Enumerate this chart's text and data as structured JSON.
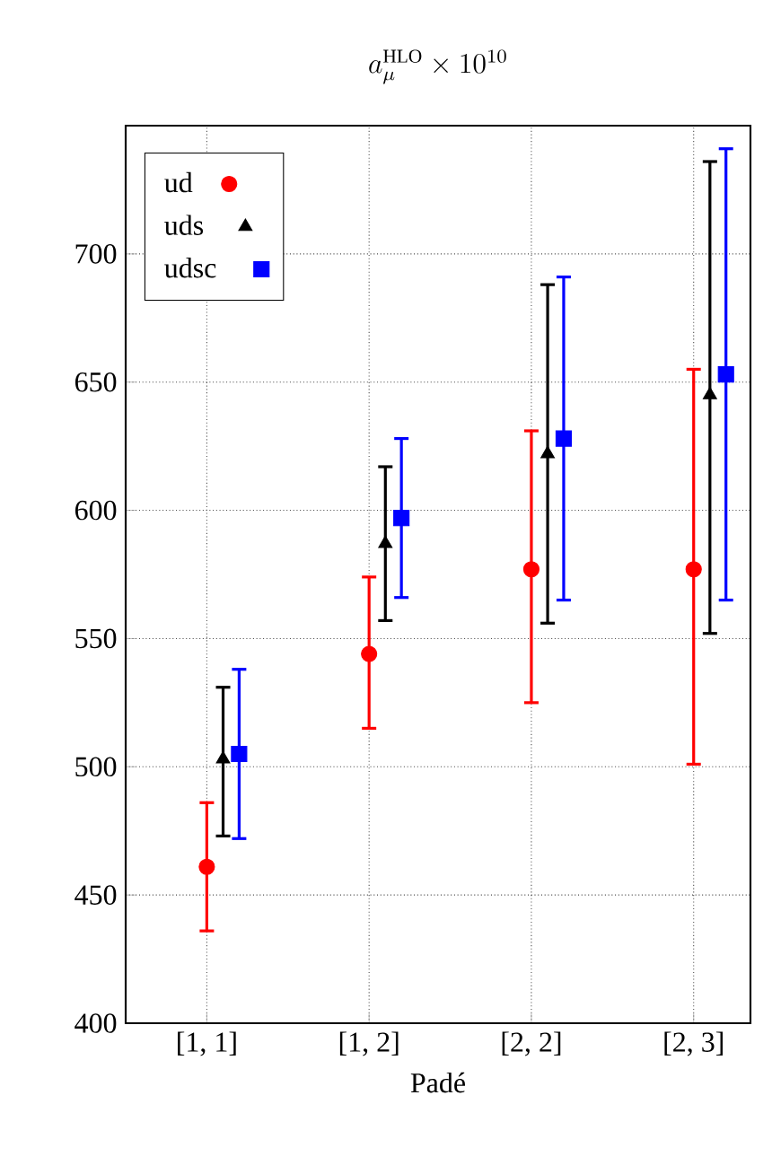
{
  "chart_data": {
    "type": "scatter",
    "title": "a_{\\mu}^{\\mathrm{HLO}}\\times 10^{10}",
    "xlabel": "Padé",
    "categories": [
      "[1, 1]",
      "[1, 2]",
      "[2, 2]",
      "[2, 3]"
    ],
    "series": [
      {
        "name": "ud",
        "color": "#ff0000",
        "marker": "circle",
        "values": [
          461,
          544,
          577,
          577
        ],
        "errors": [
          [
            436,
            486
          ],
          [
            515,
            574
          ],
          [
            525,
            631
          ],
          [
            501,
            655
          ]
        ]
      },
      {
        "name": "uds",
        "color": "#000000",
        "marker": "triangle",
        "values": [
          503,
          587,
          622,
          645
        ],
        "errors": [
          [
            473,
            531
          ],
          [
            557,
            617
          ],
          [
            556,
            688
          ],
          [
            552,
            736
          ]
        ]
      },
      {
        "name": "udsc",
        "color": "#0000ff",
        "marker": "square",
        "values": [
          505,
          597,
          628,
          653
        ],
        "errors": [
          [
            472,
            538
          ],
          [
            566,
            628
          ],
          [
            565,
            691
          ],
          [
            565,
            741
          ]
        ]
      }
    ],
    "ylim": [
      400,
      750
    ],
    "yticks": [
      400,
      450,
      500,
      550,
      600,
      650,
      700
    ],
    "grid": true,
    "legend": "top left"
  }
}
